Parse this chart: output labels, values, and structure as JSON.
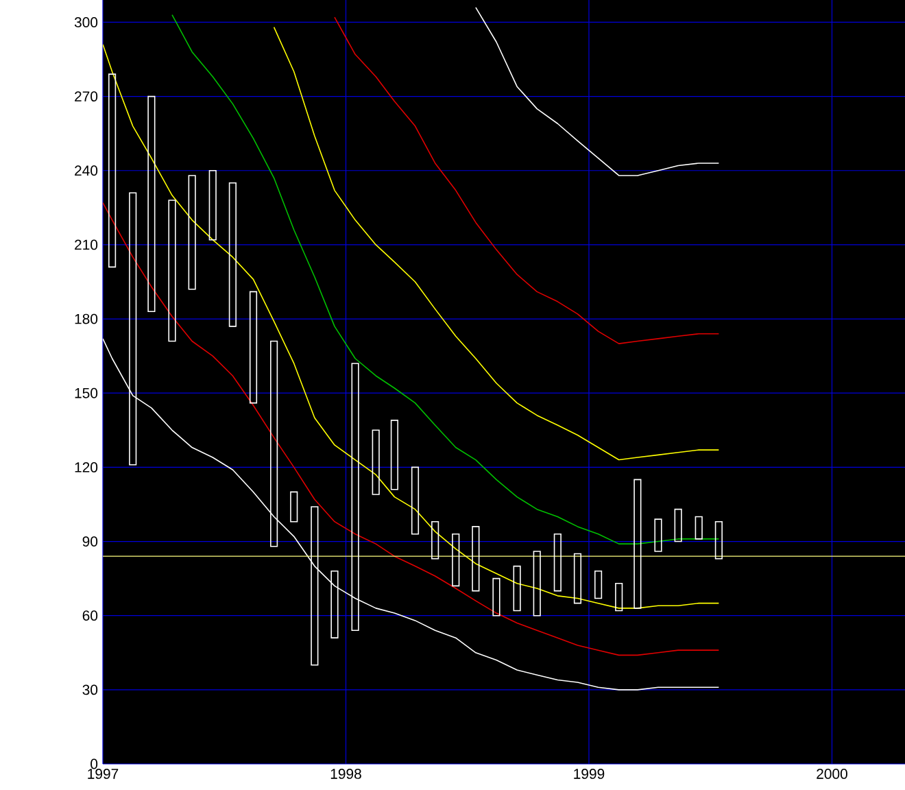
{
  "chart_data": {
    "type": "candlestick",
    "x": [
      "1997-01-15",
      "1997-02-15",
      "1997-03-15",
      "1997-04-15",
      "1997-05-15",
      "1997-06-15",
      "1997-07-15",
      "1997-08-15",
      "1997-09-15",
      "1997-10-15",
      "1997-11-15",
      "1997-12-15",
      "1998-01-15",
      "1998-02-15",
      "1998-03-15",
      "1998-04-15",
      "1998-05-15",
      "1998-06-15",
      "1998-07-15",
      "1998-08-15",
      "1998-09-15",
      "1998-10-15",
      "1998-11-15",
      "1998-12-15",
      "1999-01-15",
      "1999-02-15",
      "1999-03-15",
      "1999-04-15",
      "1999-05-15",
      "1999-06-15",
      "1999-07-15"
    ],
    "ohlc": [
      [
        279,
        279,
        201,
        201
      ],
      [
        231,
        231,
        121,
        121
      ],
      [
        270,
        270,
        183,
        183
      ],
      [
        228,
        228,
        171,
        171
      ],
      [
        238,
        238,
        192,
        192
      ],
      [
        240,
        240,
        212,
        212
      ],
      [
        235,
        235,
        177,
        177
      ],
      [
        191,
        191,
        146,
        146
      ],
      [
        171,
        171,
        88,
        88
      ],
      [
        110,
        110,
        98,
        98
      ],
      [
        104,
        104,
        40,
        40
      ],
      [
        78,
        78,
        51,
        51
      ],
      [
        162,
        162,
        54,
        54
      ],
      [
        135,
        135,
        109,
        109
      ],
      [
        139,
        139,
        111,
        111
      ],
      [
        120,
        120,
        93,
        93
      ],
      [
        98,
        98,
        83,
        83
      ],
      [
        93,
        93,
        72,
        72
      ],
      [
        96,
        96,
        70,
        70
      ],
      [
        75,
        75,
        60,
        60
      ],
      [
        80,
        80,
        62,
        62
      ],
      [
        86,
        86,
        60,
        60
      ],
      [
        93,
        93,
        70,
        70
      ],
      [
        85,
        85,
        65,
        65
      ],
      [
        78,
        78,
        67,
        67
      ],
      [
        73,
        73,
        62,
        62
      ],
      [
        115,
        115,
        63,
        63
      ],
      [
        99,
        99,
        86,
        86
      ],
      [
        103,
        103,
        90,
        90
      ],
      [
        100,
        100,
        91,
        91
      ],
      [
        98,
        98,
        83,
        83
      ]
    ],
    "color": "#ffffff",
    "series": [
      {
        "type": "line",
        "color": "#ffffff",
        "x": [
          "1997-01-01",
          "1997-01-15",
          "1997-02-15",
          "1997-03-15",
          "1997-04-15",
          "1997-05-15",
          "1997-06-15",
          "1997-07-15",
          "1997-08-15",
          "1997-09-15",
          "1997-10-15",
          "1997-11-15",
          "1997-12-15",
          "1998-01-15",
          "1998-02-15",
          "1998-03-15",
          "1998-04-15",
          "1998-05-15",
          "1998-06-15",
          "1998-07-15",
          "1998-08-15",
          "1998-09-15",
          "1998-10-15",
          "1998-11-15",
          "1998-12-15",
          "1999-01-15",
          "1999-02-15",
          "1999-03-15",
          "1999-04-15",
          "1999-05-15",
          "1999-06-15",
          "1999-07-15"
        ],
        "values": [
          172,
          164,
          149,
          144,
          135,
          128,
          124,
          119,
          110,
          100,
          92,
          80,
          72,
          67,
          63,
          61,
          58,
          54,
          51,
          45,
          42,
          38,
          36,
          34,
          33,
          31,
          30,
          30,
          31,
          31,
          31,
          31
        ]
      },
      {
        "type": "line",
        "color": "#e00000",
        "x": [
          "1997-01-01",
          "1997-01-15",
          "1997-02-15",
          "1997-03-15",
          "1997-04-15",
          "1997-05-15",
          "1997-06-15",
          "1997-07-15",
          "1997-08-15",
          "1997-09-15",
          "1997-10-15",
          "1997-11-15",
          "1997-12-15",
          "1998-01-15",
          "1998-02-15",
          "1998-03-15",
          "1998-04-15",
          "1998-05-15",
          "1998-06-15",
          "1998-07-15",
          "1998-08-15",
          "1998-09-15",
          "1998-10-15",
          "1998-11-15",
          "1998-12-15",
          "1999-01-15",
          "1999-02-15",
          "1999-03-15",
          "1999-04-15",
          "1999-05-15",
          "1999-06-15",
          "1999-07-15"
        ],
        "values": [
          227,
          220,
          205,
          193,
          181,
          171,
          165,
          157,
          145,
          132,
          120,
          107,
          98,
          93,
          89,
          84,
          80,
          76,
          71,
          66,
          61,
          57,
          54,
          51,
          48,
          46,
          44,
          44,
          45,
          46,
          46,
          46
        ]
      },
      {
        "type": "line",
        "color": "#ffff00",
        "x": [
          "1997-01-01",
          "1997-01-15",
          "1997-02-15",
          "1997-03-15",
          "1997-04-15",
          "1997-05-15",
          "1997-06-15",
          "1997-07-15",
          "1997-08-15",
          "1997-09-15",
          "1997-10-15",
          "1997-11-15",
          "1997-12-15",
          "1998-01-15",
          "1998-02-15",
          "1998-03-15",
          "1998-04-15",
          "1998-05-15",
          "1998-06-15",
          "1998-07-15",
          "1998-08-15",
          "1998-09-15",
          "1998-10-15",
          "1998-11-15",
          "1998-12-15",
          "1999-01-15",
          "1999-02-15",
          "1999-03-15",
          "1999-04-15",
          "1999-05-15",
          "1999-06-15",
          "1999-07-15"
        ],
        "values": [
          291,
          280,
          258,
          245,
          230,
          220,
          212,
          205,
          196,
          179,
          162,
          140,
          129,
          123,
          117,
          108,
          103,
          94,
          87,
          81,
          77,
          73,
          71,
          68,
          67,
          65,
          63,
          63,
          64,
          64,
          65,
          65
        ]
      },
      {
        "type": "line",
        "color": "#00c000",
        "x": [
          "1997-04-15",
          "1997-05-15",
          "1997-06-15",
          "1997-07-15",
          "1997-08-15",
          "1997-09-15",
          "1997-10-15",
          "1997-11-15",
          "1997-12-15",
          "1998-01-15",
          "1998-02-15",
          "1998-03-15",
          "1998-04-15",
          "1998-05-15",
          "1998-06-15",
          "1998-07-15",
          "1998-08-15",
          "1998-09-15",
          "1998-10-15",
          "1998-11-15",
          "1998-12-15",
          "1999-01-15",
          "1999-02-15",
          "1999-03-15",
          "1999-04-15",
          "1999-05-15",
          "1999-06-15",
          "1999-07-15"
        ],
        "values": [
          303,
          288,
          278,
          267,
          253,
          237,
          216,
          197,
          177,
          164,
          157,
          152,
          146,
          137,
          128,
          123,
          115,
          108,
          103,
          100,
          96,
          93,
          89,
          89,
          90,
          91,
          91,
          91
        ]
      },
      {
        "type": "line",
        "color": "#ffff00",
        "x": [
          "1997-09-15",
          "1997-10-15",
          "1997-11-15",
          "1997-12-15",
          "1998-01-15",
          "1998-02-15",
          "1998-03-15",
          "1998-04-15",
          "1998-05-15",
          "1998-06-15",
          "1998-07-15",
          "1998-08-15",
          "1998-09-15",
          "1998-10-15",
          "1998-11-15",
          "1998-12-15",
          "1999-01-15",
          "1999-02-15",
          "1999-03-15",
          "1999-04-15",
          "1999-05-15",
          "1999-06-15",
          "1999-07-15"
        ],
        "values": [
          298,
          280,
          254,
          232,
          220,
          210,
          203,
          195,
          184,
          173,
          164,
          154,
          146,
          141,
          137,
          133,
          128,
          123,
          124,
          125,
          126,
          127,
          127
        ]
      },
      {
        "type": "line",
        "color": "#e00000",
        "x": [
          "1997-12-15",
          "1998-01-15",
          "1998-02-15",
          "1998-03-15",
          "1998-04-15",
          "1998-05-15",
          "1998-06-15",
          "1998-07-15",
          "1998-08-15",
          "1998-09-15",
          "1998-10-15",
          "1998-11-15",
          "1998-12-15",
          "1999-01-15",
          "1999-02-15",
          "1999-03-15",
          "1999-04-15",
          "1999-05-15",
          "1999-06-15",
          "1999-07-15"
        ],
        "values": [
          302,
          287,
          278,
          268,
          258,
          243,
          232,
          219,
          208,
          198,
          191,
          187,
          182,
          175,
          170,
          171,
          172,
          173,
          174,
          174
        ]
      },
      {
        "type": "line",
        "color": "#ffffff",
        "x": [
          "1998-07-15",
          "1998-08-15",
          "1998-09-15",
          "1998-10-15",
          "1998-11-15",
          "1998-12-15",
          "1999-01-15",
          "1999-02-15",
          "1999-03-15",
          "1999-04-15",
          "1999-05-15",
          "1999-06-15",
          "1999-07-15"
        ],
        "values": [
          306,
          292,
          274,
          265,
          259,
          252,
          245,
          238,
          238,
          240,
          242,
          243,
          243
        ]
      }
    ],
    "ref_lines": [
      {
        "axis": "y",
        "value": 84,
        "color": "#ffff80"
      }
    ],
    "xlim": [
      "1997-01-01",
      "2000-04-20"
    ],
    "xticks": [
      {
        "value": "1997-01-01",
        "label": "1997"
      },
      {
        "value": "1998-01-01",
        "label": "1998"
      },
      {
        "value": "1999-01-01",
        "label": "1999"
      },
      {
        "value": "2000-01-01",
        "label": "2000"
      }
    ],
    "ylim": [
      0,
      309
    ],
    "yticks": [
      0,
      30,
      60,
      90,
      120,
      150,
      180,
      210,
      240,
      270,
      300
    ],
    "grid": true,
    "marker": "none",
    "line_style": "solid"
  }
}
